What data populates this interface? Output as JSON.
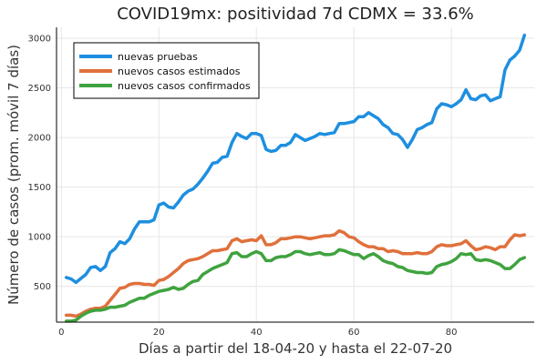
{
  "chart_data": {
    "type": "line",
    "title": "COVID19mx: positividad 7d CDMX = 33.6%",
    "xlabel": "Días a partir del 18-04-20 y hasta el 22-07-20",
    "ylabel": "Número de casos (prom. móvil 7 días)",
    "xlim": [
      -1,
      97
    ],
    "ylim": [
      140,
      3110
    ],
    "xticks": [
      0,
      20,
      40,
      60,
      80
    ],
    "yticks": [
      500,
      1000,
      1500,
      2000,
      2500,
      3000
    ],
    "grid": true,
    "legend_position": "top-left",
    "x": [
      1,
      2,
      3,
      4,
      5,
      6,
      7,
      8,
      9,
      10,
      11,
      12,
      13,
      14,
      15,
      16,
      17,
      18,
      19,
      20,
      21,
      22,
      23,
      24,
      25,
      26,
      27,
      28,
      29,
      30,
      31,
      32,
      33,
      34,
      35,
      36,
      37,
      38,
      39,
      40,
      41,
      42,
      43,
      44,
      45,
      46,
      47,
      48,
      49,
      50,
      51,
      52,
      53,
      54,
      55,
      56,
      57,
      58,
      59,
      60,
      61,
      62,
      63,
      64,
      65,
      66,
      67,
      68,
      69,
      70,
      71,
      72,
      73,
      74,
      75,
      76,
      77,
      78,
      79,
      80,
      81,
      82,
      83,
      84,
      85,
      86,
      87,
      88,
      89,
      90,
      91,
      92,
      93,
      94,
      95
    ],
    "series": [
      {
        "name": "nuevas pruebas",
        "color": "#1e8fe0",
        "values": [
          590,
          575,
          540,
          580,
          620,
          690,
          700,
          660,
          700,
          840,
          880,
          950,
          930,
          980,
          1080,
          1150,
          1150,
          1150,
          1170,
          1320,
          1340,
          1300,
          1290,
          1350,
          1420,
          1460,
          1480,
          1530,
          1590,
          1660,
          1740,
          1750,
          1800,
          1810,
          1950,
          2040,
          2010,
          1990,
          2040,
          2040,
          2020,
          1880,
          1860,
          1870,
          1920,
          1920,
          1950,
          2030,
          2000,
          1970,
          1990,
          2010,
          2040,
          2030,
          2040,
          2050,
          2140,
          2140,
          2150,
          2160,
          2210,
          2210,
          2250,
          2220,
          2190,
          2130,
          2100,
          2040,
          2030,
          1980,
          1900,
          1980,
          2080,
          2100,
          2130,
          2150,
          2290,
          2340,
          2330,
          2310,
          2340,
          2380,
          2480,
          2390,
          2380,
          2420,
          2430,
          2370,
          2390,
          2410,
          2680,
          2780,
          2820,
          2880,
          3030
        ]
      },
      {
        "name": "nuevos casos estimados",
        "color": "#e0703c",
        "values": [
          210,
          210,
          200,
          220,
          250,
          270,
          280,
          280,
          300,
          360,
          420,
          480,
          490,
          520,
          530,
          530,
          520,
          520,
          510,
          560,
          570,
          600,
          640,
          680,
          730,
          760,
          770,
          780,
          800,
          830,
          860,
          860,
          870,
          880,
          960,
          980,
          950,
          960,
          970,
          960,
          1010,
          920,
          920,
          940,
          980,
          980,
          990,
          1000,
          1000,
          990,
          980,
          990,
          1000,
          1010,
          1010,
          1020,
          1060,
          1040,
          1000,
          990,
          950,
          920,
          900,
          900,
          880,
          880,
          850,
          860,
          850,
          830,
          830,
          830,
          840,
          830,
          830,
          850,
          900,
          920,
          910,
          910,
          920,
          930,
          960,
          910,
          870,
          880,
          900,
          890,
          870,
          900,
          900,
          970,
          1020,
          1010,
          1020
        ]
      },
      {
        "name": "nuevos casos confirmados",
        "color": "#3fa33f",
        "values": [
          150,
          150,
          160,
          200,
          230,
          250,
          260,
          260,
          270,
          290,
          290,
          300,
          310,
          340,
          360,
          380,
          380,
          410,
          430,
          450,
          460,
          470,
          490,
          470,
          480,
          520,
          550,
          560,
          620,
          650,
          680,
          700,
          720,
          740,
          830,
          840,
          800,
          800,
          830,
          850,
          830,
          760,
          760,
          790,
          800,
          800,
          820,
          850,
          850,
          830,
          820,
          830,
          840,
          820,
          820,
          830,
          870,
          860,
          840,
          820,
          820,
          780,
          810,
          830,
          800,
          760,
          740,
          730,
          700,
          690,
          660,
          650,
          640,
          640,
          630,
          640,
          700,
          720,
          730,
          750,
          780,
          830,
          820,
          830,
          770,
          760,
          770,
          760,
          740,
          720,
          680,
          680,
          720,
          770,
          790
        ]
      }
    ]
  }
}
